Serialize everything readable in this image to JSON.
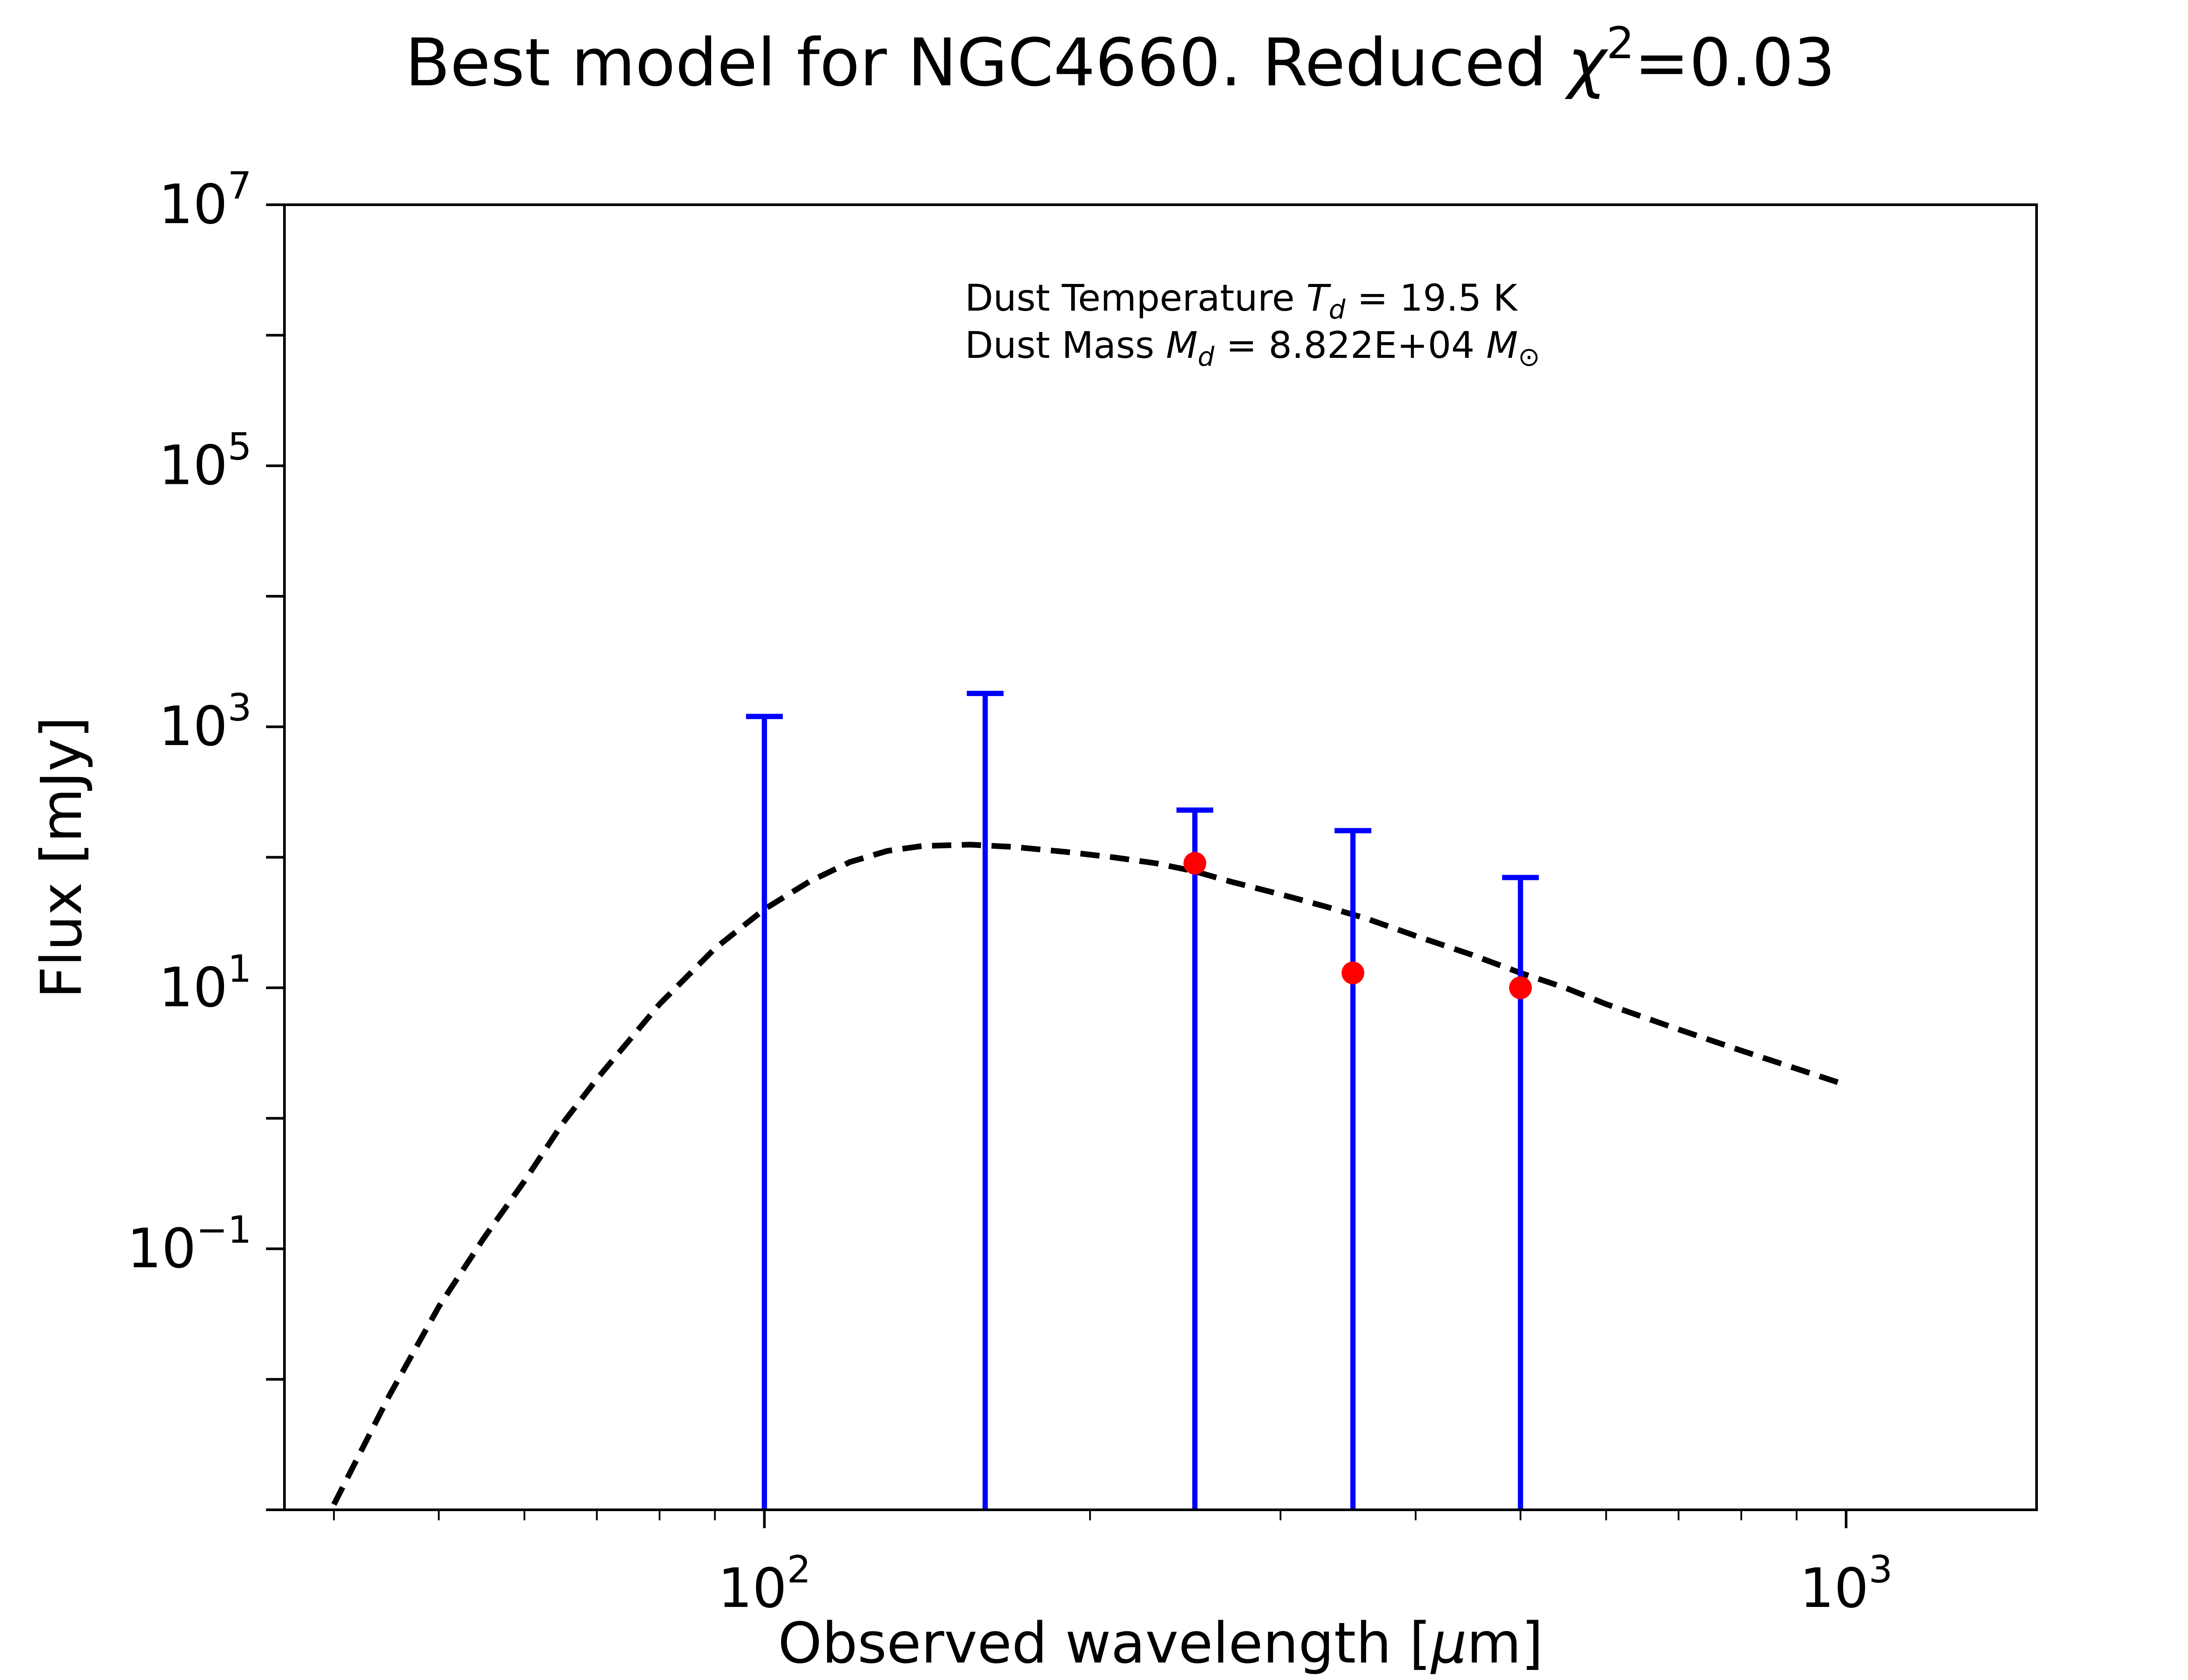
{
  "chart_data": {
    "type": "scatter",
    "title": "Best model for NGC4660. Reduced χ²=0.03",
    "title_parts": {
      "prefix": "Best model for NGC4660. Reduced ",
      "chi": "χ",
      "sup": "2",
      "suffix": "=0.03"
    },
    "xlabel": "Observed wavelength [μm]",
    "xlabel_parts": {
      "prefix": "Observed wavelength [",
      "mu": "μ",
      "suffix": "m]"
    },
    "ylabel": "Flux [mJy]",
    "xscale": "log",
    "yscale": "log",
    "xlim": [
      36,
      1500
    ],
    "ylim": [
      0.001,
      10000000
    ],
    "grid": false,
    "x_ticks": [
      {
        "value": 100,
        "base": "10",
        "exp": "2"
      },
      {
        "value": 1000,
        "base": "10",
        "exp": "3"
      }
    ],
    "y_ticks": [
      {
        "value": 0.1,
        "base": "10",
        "exp": "−1"
      },
      {
        "value": 10,
        "base": "10",
        "exp": "1"
      },
      {
        "value": 1000,
        "base": "10",
        "exp": "3"
      },
      {
        "value": 100000,
        "base": "10",
        "exp": "5"
      },
      {
        "value": 10000000,
        "base": "10",
        "exp": "7"
      }
    ],
    "annotation": {
      "line1": {
        "text": "Dust Temperature ",
        "var": "T",
        "sub": "d",
        "value": " = 19.5 K"
      },
      "line2": {
        "text": "Dust Mass ",
        "var": "M",
        "sub": "d",
        "value": " = 8.822E+04 ",
        "unit": "M",
        "unit_sub": "⊙"
      }
    },
    "model_curve": {
      "style": "dashed",
      "color": "#000000",
      "x": [
        40,
        45,
        50,
        55,
        60,
        65,
        70,
        80,
        90,
        100,
        110,
        120,
        130,
        140,
        155,
        170,
        190,
        210,
        230,
        250,
        270,
        300,
        330,
        360,
        400,
        450,
        500,
        550,
        600,
        700,
        800,
        900,
        1000
      ],
      "y": [
        0.0011,
        0.0075,
        0.036,
        0.12,
        0.33,
        0.9,
        2.0,
        7.5,
        20,
        40,
        65,
        92,
        112,
        122,
        125,
        120,
        110,
        100,
        90,
        78,
        65,
        52,
        42,
        34,
        25,
        18,
        13,
        10,
        7.5,
        4.8,
        3.3,
        2.4,
        1.8
      ]
    },
    "upper_limits": {
      "color": "#0000ff",
      "x": [
        100,
        160,
        250,
        350,
        500
      ],
      "y": [
        1200,
        1800,
        230,
        160,
        70
      ]
    },
    "detections": {
      "color": "#ff0000",
      "x": [
        250,
        350,
        500
      ],
      "y": [
        90,
        13,
        10
      ]
    }
  }
}
